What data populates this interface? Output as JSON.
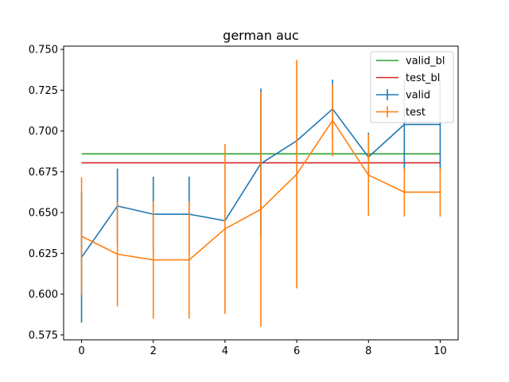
{
  "chart_data": {
    "type": "line",
    "title": "german  auc",
    "xlabel": "",
    "ylabel": "",
    "xlim": [
      -0.5,
      10.5
    ],
    "ylim": [
      0.572,
      0.752
    ],
    "xticks": [
      0,
      2,
      4,
      6,
      8,
      10
    ],
    "xtick_labels": [
      "0",
      "2",
      "4",
      "6",
      "8",
      "10"
    ],
    "yticks": [
      0.575,
      0.6,
      0.625,
      0.65,
      0.675,
      0.7,
      0.725,
      0.75
    ],
    "ytick_labels": [
      "0.575",
      "0.600",
      "0.625",
      "0.650",
      "0.675",
      "0.700",
      "0.725",
      "0.750"
    ],
    "grid": false,
    "legend_position": "upper-right",
    "hlines": [
      {
        "name": "valid_bl",
        "y": 0.686,
        "color": "#2ca02c"
      },
      {
        "name": "test_bl",
        "y": 0.6805,
        "color": "#d62728"
      }
    ],
    "series": [
      {
        "name": "valid",
        "color": "#1f77b4",
        "x": [
          0,
          1,
          2,
          3,
          4,
          5,
          6,
          7,
          8,
          9,
          10
        ],
        "y": [
          0.6225,
          0.654,
          0.649,
          0.649,
          0.645,
          0.68,
          0.694,
          0.7135,
          0.684,
          0.704,
          0.704
        ],
        "err": [
          0.04,
          0.023,
          0.023,
          0.023,
          0.0,
          0.046,
          0.0,
          0.018,
          0.015,
          0.028,
          0.028
        ]
      },
      {
        "name": "test",
        "color": "#ff7f0e",
        "x": [
          0,
          1,
          2,
          3,
          4,
          5,
          6,
          7,
          8,
          9,
          10
        ],
        "y": [
          0.6355,
          0.6245,
          0.621,
          0.621,
          0.64,
          0.652,
          0.6735,
          0.7065,
          0.673,
          0.6625,
          0.6625
        ],
        "err": [
          0.036,
          0.032,
          0.036,
          0.036,
          0.052,
          0.072,
          0.07,
          0.022,
          0.025,
          0.015,
          0.015
        ]
      }
    ],
    "legend": [
      {
        "label": "valid_bl",
        "kind": "line",
        "color": "#2ca02c"
      },
      {
        "label": "test_bl",
        "kind": "line",
        "color": "#d62728"
      },
      {
        "label": "valid",
        "kind": "errorbar",
        "color": "#1f77b4"
      },
      {
        "label": "test",
        "kind": "errorbar",
        "color": "#ff7f0e"
      }
    ]
  }
}
